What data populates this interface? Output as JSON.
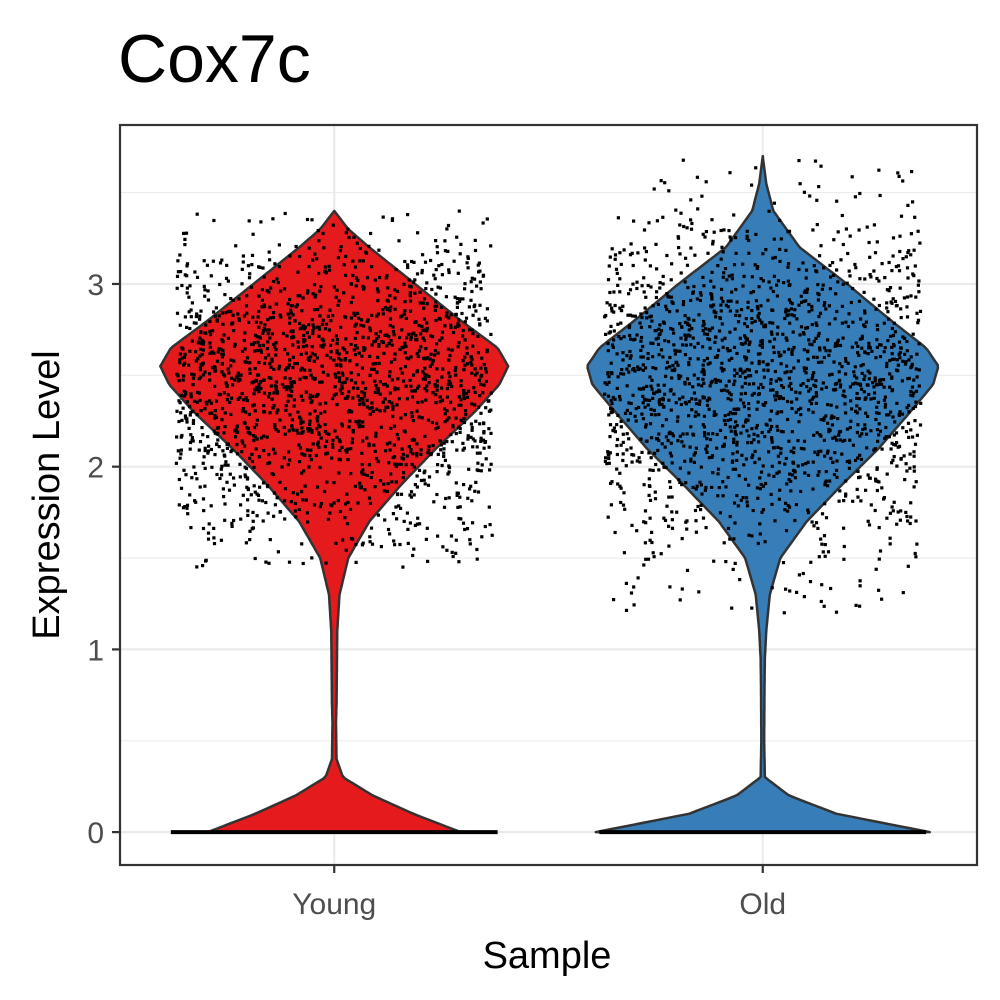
{
  "chart_data": {
    "type": "violin",
    "title": "Cox7c",
    "xlabel": "Sample",
    "ylabel": "Expression Level",
    "categories": [
      "Young",
      "Old"
    ],
    "y_ticks": [
      "0",
      "1",
      "2",
      "3"
    ],
    "ylim": [
      -0.18,
      3.87
    ],
    "grid": "on",
    "legend": "none",
    "series": [
      {
        "values_summary": {
          "zero_fraction_visible": "large mass at 0",
          "mode": 2.55,
          "max": 3.4,
          "min_nonzero": 0.7
        },
        "color": "#E41A1C",
        "profile": [
          [
            0.0,
            0.72
          ],
          [
            0.1,
            0.45
          ],
          [
            0.2,
            0.22
          ],
          [
            0.3,
            0.05
          ],
          [
            0.4,
            0.013
          ],
          [
            0.6,
            0.01
          ],
          [
            0.7,
            0.013
          ],
          [
            0.9,
            0.015
          ],
          [
            1.1,
            0.017
          ],
          [
            1.3,
            0.03
          ],
          [
            1.5,
            0.08
          ],
          [
            1.7,
            0.2
          ],
          [
            1.9,
            0.38
          ],
          [
            2.1,
            0.58
          ],
          [
            2.3,
            0.8
          ],
          [
            2.45,
            0.94
          ],
          [
            2.55,
            0.99
          ],
          [
            2.65,
            0.93
          ],
          [
            2.8,
            0.72
          ],
          [
            3.0,
            0.46
          ],
          [
            3.2,
            0.2
          ],
          [
            3.3,
            0.08
          ],
          [
            3.4,
            0.0
          ]
        ],
        "point_range": [
          1.45,
          3.4
        ]
      },
      {
        "values_summary": {
          "zero_fraction_visible": "large mass at 0",
          "mode": 2.55,
          "max": 3.7,
          "min_nonzero": 0.95
        },
        "color": "#377EB8",
        "profile": [
          [
            0.0,
            0.95
          ],
          [
            0.1,
            0.42
          ],
          [
            0.2,
            0.15
          ],
          [
            0.3,
            0.012
          ],
          [
            0.5,
            0.008
          ],
          [
            0.8,
            0.01
          ],
          [
            0.95,
            0.012
          ],
          [
            1.1,
            0.02
          ],
          [
            1.3,
            0.04
          ],
          [
            1.5,
            0.1
          ],
          [
            1.7,
            0.25
          ],
          [
            1.9,
            0.45
          ],
          [
            2.1,
            0.66
          ],
          [
            2.3,
            0.84
          ],
          [
            2.45,
            0.97
          ],
          [
            2.55,
            1.0
          ],
          [
            2.65,
            0.93
          ],
          [
            2.8,
            0.73
          ],
          [
            3.0,
            0.48
          ],
          [
            3.2,
            0.21
          ],
          [
            3.4,
            0.06
          ],
          [
            3.55,
            0.02
          ],
          [
            3.7,
            0.0
          ]
        ],
        "point_range": [
          1.2,
          3.7
        ]
      }
    ]
  }
}
